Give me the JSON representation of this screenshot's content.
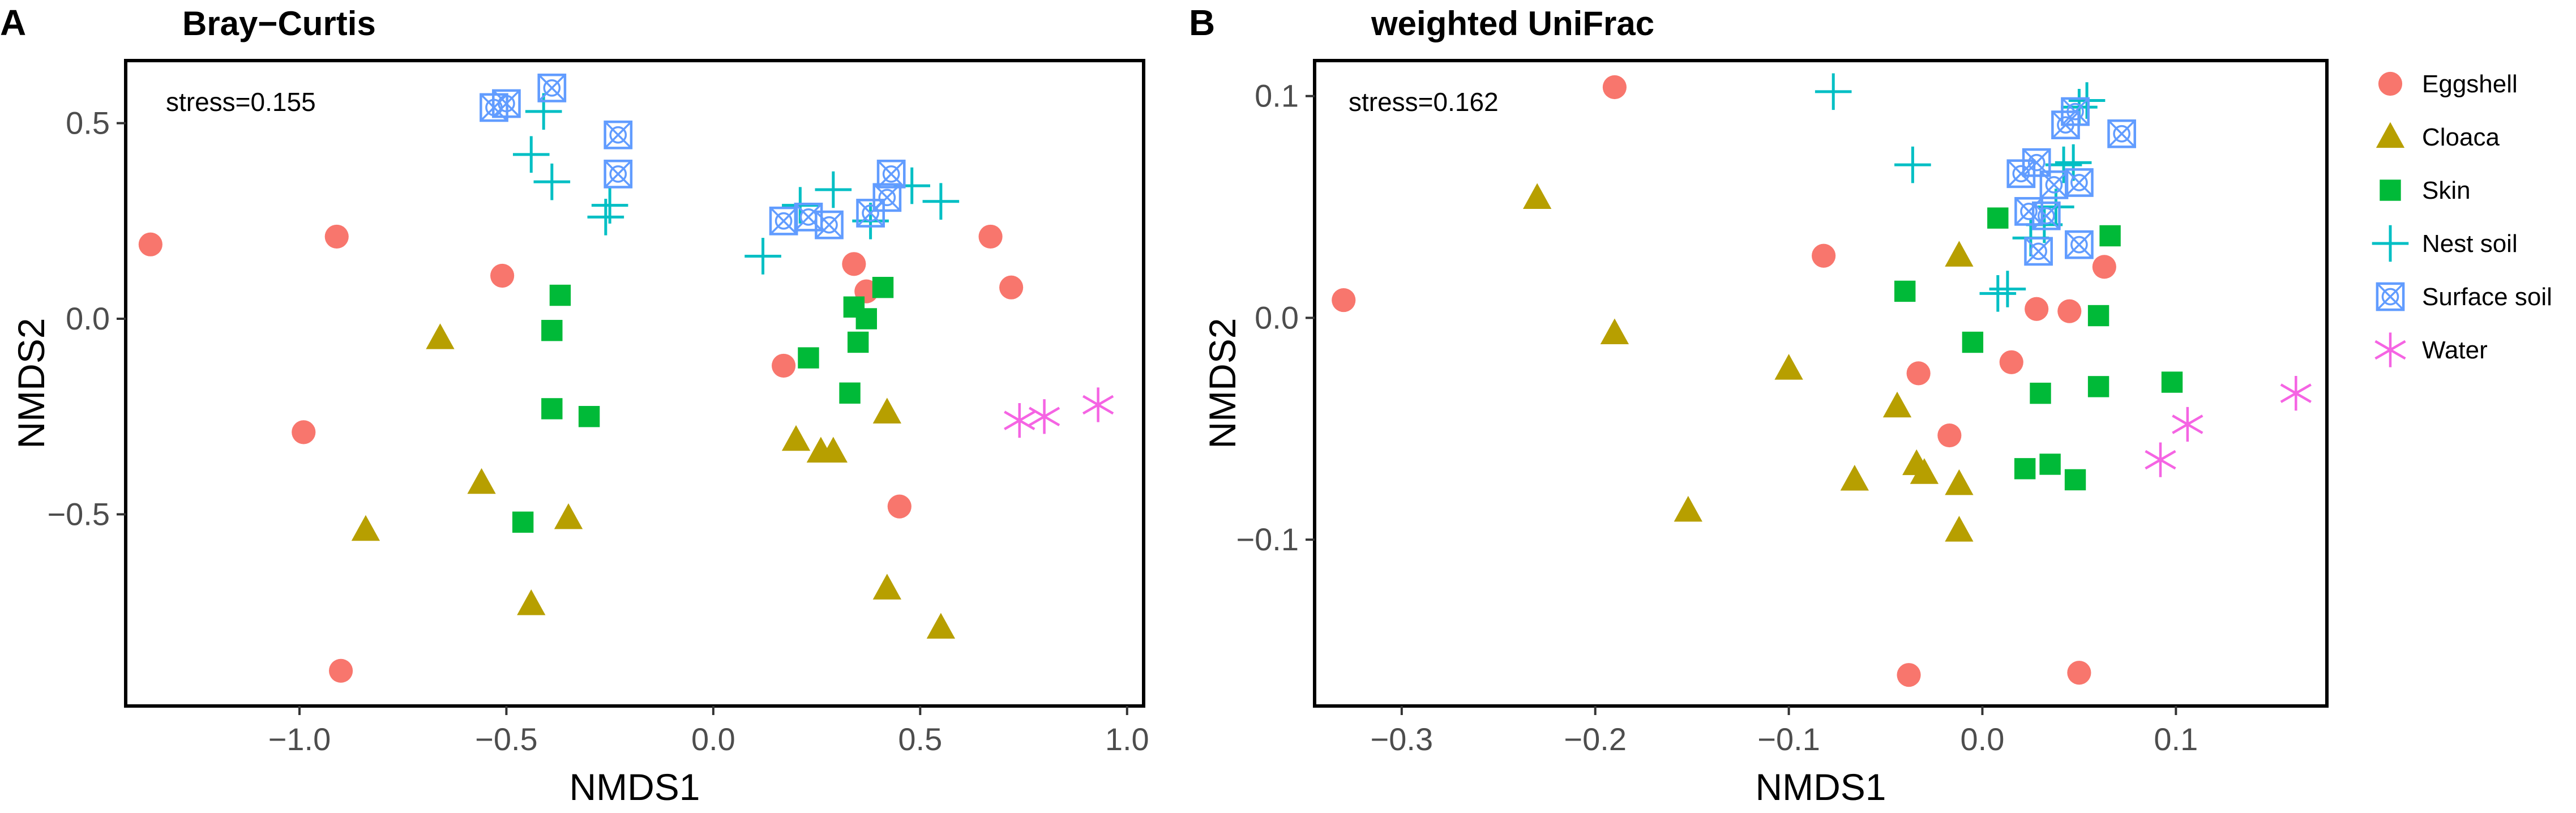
{
  "chart_data": [
    {
      "type": "scatter",
      "panel_label": "A",
      "title": "Bray−Curtis",
      "annotation": "stress=0.155",
      "xlabel": "NMDS1",
      "ylabel": "NMDS2",
      "xlim": [
        -1.42,
        1.04
      ],
      "ylim": [
        -0.99,
        0.66
      ],
      "xticks": [
        -1.0,
        -0.5,
        0.0,
        0.5,
        1.0
      ],
      "xtick_labels": [
        "−1.0",
        "−0.5",
        "0.0",
        "0.5",
        "1.0"
      ],
      "yticks": [
        -0.5,
        0.0,
        0.5
      ],
      "ytick_labels": [
        "−0.5",
        "0.0",
        "0.5"
      ],
      "series": [
        {
          "name": "Eggshell",
          "points": [
            [
              -1.36,
              0.19
            ],
            [
              -0.91,
              0.21
            ],
            [
              -0.51,
              0.11
            ],
            [
              -0.99,
              -0.29
            ],
            [
              -0.9,
              -0.9
            ],
            [
              0.34,
              0.14
            ],
            [
              0.37,
              0.07
            ],
            [
              0.17,
              -0.12
            ],
            [
              0.45,
              -0.48
            ],
            [
              0.67,
              0.21
            ],
            [
              0.72,
              0.08
            ]
          ]
        },
        {
          "name": "Cloaca",
          "points": [
            [
              -0.66,
              -0.05
            ],
            [
              -0.56,
              -0.42
            ],
            [
              -0.84,
              -0.54
            ],
            [
              -0.35,
              -0.51
            ],
            [
              -0.44,
              -0.73
            ],
            [
              0.2,
              -0.31
            ],
            [
              0.26,
              -0.34
            ],
            [
              0.29,
              -0.34
            ],
            [
              0.42,
              -0.24
            ],
            [
              0.42,
              -0.69
            ],
            [
              0.55,
              -0.79
            ]
          ]
        },
        {
          "name": "Skin",
          "points": [
            [
              -0.37,
              0.06
            ],
            [
              -0.39,
              -0.03
            ],
            [
              -0.39,
              -0.23
            ],
            [
              -0.3,
              -0.25
            ],
            [
              -0.46,
              -0.52
            ],
            [
              0.23,
              -0.1
            ],
            [
              0.34,
              0.03
            ],
            [
              0.37,
              0.0
            ],
            [
              0.41,
              0.08
            ],
            [
              0.35,
              -0.06
            ],
            [
              0.33,
              -0.19
            ]
          ]
        },
        {
          "name": "Nest soil",
          "points": [
            [
              -0.41,
              0.53
            ],
            [
              -0.44,
              0.42
            ],
            [
              -0.39,
              0.35
            ],
            [
              -0.25,
              0.29
            ],
            [
              -0.26,
              0.26
            ],
            [
              0.12,
              0.16
            ],
            [
              0.21,
              0.29
            ],
            [
              0.29,
              0.33
            ],
            [
              0.38,
              0.25
            ],
            [
              0.48,
              0.34
            ],
            [
              0.55,
              0.3
            ]
          ]
        },
        {
          "name": "Surface soil",
          "points": [
            [
              -0.53,
              0.54
            ],
            [
              -0.5,
              0.55
            ],
            [
              -0.39,
              0.59
            ],
            [
              -0.23,
              0.47
            ],
            [
              -0.23,
              0.37
            ],
            [
              0.17,
              0.25
            ],
            [
              0.23,
              0.26
            ],
            [
              0.28,
              0.24
            ],
            [
              0.38,
              0.27
            ],
            [
              0.42,
              0.31
            ],
            [
              0.43,
              0.37
            ]
          ]
        },
        {
          "name": "Water",
          "points": [
            [
              0.74,
              -0.26
            ],
            [
              0.8,
              -0.25
            ],
            [
              0.93,
              -0.22
            ]
          ]
        }
      ]
    },
    {
      "type": "scatter",
      "panel_label": "B",
      "title": "weighted UniFrac",
      "annotation": "stress=0.162",
      "xlabel": "NMDS1",
      "ylabel": "NMDS2",
      "xlim": [
        -0.345,
        0.178
      ],
      "ylim": [
        -0.175,
        0.116
      ],
      "xticks": [
        -0.3,
        -0.2,
        -0.1,
        0.0,
        0.1
      ],
      "xtick_labels": [
        "−0.3",
        "−0.2",
        "−0.1",
        "0.0",
        "0.1"
      ],
      "yticks": [
        -0.1,
        0.0,
        0.1
      ],
      "ytick_labels": [
        "−0.1",
        "0.0",
        "0.1"
      ],
      "series": [
        {
          "name": "Eggshell",
          "points": [
            [
              -0.33,
              0.008
            ],
            [
              -0.19,
              0.104
            ],
            [
              -0.082,
              0.028
            ],
            [
              -0.033,
              -0.025
            ],
            [
              -0.017,
              -0.053
            ],
            [
              0.015,
              -0.02
            ],
            [
              0.028,
              0.004
            ],
            [
              0.045,
              0.003
            ],
            [
              0.063,
              0.023
            ],
            [
              -0.038,
              -0.161
            ],
            [
              0.05,
              -0.16
            ]
          ]
        },
        {
          "name": "Cloaca",
          "points": [
            [
              -0.23,
              0.054
            ],
            [
              -0.19,
              -0.007
            ],
            [
              -0.1,
              -0.023
            ],
            [
              -0.044,
              -0.04
            ],
            [
              -0.066,
              -0.073
            ],
            [
              -0.034,
              -0.066
            ],
            [
              -0.03,
              -0.07
            ],
            [
              -0.012,
              -0.075
            ],
            [
              -0.012,
              -0.096
            ],
            [
              -0.152,
              -0.087
            ],
            [
              -0.012,
              0.028
            ]
          ]
        },
        {
          "name": "Skin",
          "points": [
            [
              -0.04,
              0.012
            ],
            [
              -0.005,
              -0.011
            ],
            [
              0.008,
              0.045
            ],
            [
              0.03,
              -0.034
            ],
            [
              0.06,
              0.001
            ],
            [
              0.06,
              -0.031
            ],
            [
              0.066,
              0.037
            ],
            [
              0.098,
              -0.029
            ],
            [
              0.022,
              -0.068
            ],
            [
              0.035,
              -0.066
            ],
            [
              0.048,
              -0.073
            ]
          ]
        },
        {
          "name": "Nest soil",
          "points": [
            [
              -0.077,
              0.102
            ],
            [
              -0.036,
              0.069
            ],
            [
              0.008,
              0.011
            ],
            [
              0.013,
              0.013
            ],
            [
              0.025,
              0.036
            ],
            [
              0.032,
              0.042
            ],
            [
              0.042,
              0.069
            ],
            [
              0.047,
              0.07
            ],
            [
              0.05,
              0.095
            ],
            [
              0.054,
              0.098
            ],
            [
              0.038,
              0.05
            ]
          ]
        },
        {
          "name": "Surface soil",
          "points": [
            [
              0.02,
              0.065
            ],
            [
              0.024,
              0.048
            ],
            [
              0.028,
              0.07
            ],
            [
              0.029,
              0.03
            ],
            [
              0.033,
              0.046
            ],
            [
              0.037,
              0.06
            ],
            [
              0.043,
              0.087
            ],
            [
              0.048,
              0.093
            ],
            [
              0.05,
              0.061
            ],
            [
              0.05,
              0.033
            ],
            [
              0.072,
              0.083
            ]
          ]
        },
        {
          "name": "Water",
          "points": [
            [
              0.092,
              -0.064
            ],
            [
              0.106,
              -0.048
            ],
            [
              0.162,
              -0.034
            ]
          ]
        }
      ]
    }
  ],
  "legend": {
    "items": [
      {
        "name": "Eggshell",
        "color": "#F8766D",
        "shape": "circle"
      },
      {
        "name": "Cloaca",
        "color": "#B79F00",
        "shape": "triangle"
      },
      {
        "name": "Skin",
        "color": "#00BA38",
        "shape": "square"
      },
      {
        "name": "Nest soil",
        "color": "#00BFC4",
        "shape": "plus"
      },
      {
        "name": "Surface soil",
        "color": "#619CFF",
        "shape": "boxed-x"
      },
      {
        "name": "Water",
        "color": "#F564E3",
        "shape": "asterisk"
      }
    ]
  }
}
